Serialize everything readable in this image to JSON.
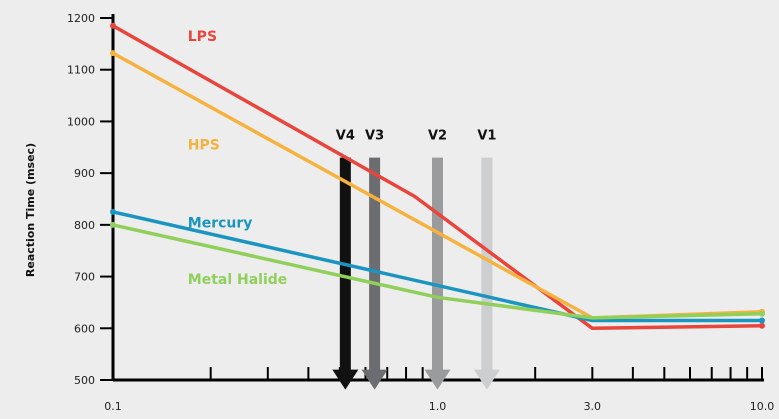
{
  "chart_data": {
    "type": "line",
    "title": "",
    "xlabel": "",
    "ylabel": "Reaction Time (msec)",
    "x_scale": "log",
    "xlim": [
      0.1,
      10.0
    ],
    "ylim": [
      500,
      1200
    ],
    "x_tick_labels": [
      {
        "value": 0.1,
        "label": "0.1"
      },
      {
        "value": 1.0,
        "label": "1.0"
      },
      {
        "value": 3.0,
        "label": "3.0"
      },
      {
        "value": 10.0,
        "label": "10.0"
      }
    ],
    "x_minor_ticks": [
      0.2,
      0.3,
      0.4,
      0.5,
      0.6,
      0.7,
      0.8,
      0.9,
      2,
      4,
      5,
      6,
      7,
      8,
      9
    ],
    "y_ticks": [
      500,
      600,
      700,
      800,
      900,
      1000,
      1100,
      1200
    ],
    "grid": false,
    "series": [
      {
        "name": "LPS",
        "color": "#e8453c",
        "points": [
          [
            0.1,
            1185
          ],
          [
            0.85,
            855
          ],
          [
            3.0,
            600
          ],
          [
            10.0,
            605
          ]
        ]
      },
      {
        "name": "HPS",
        "color": "#f6b23f",
        "points": [
          [
            0.1,
            1132
          ],
          [
            3.0,
            620
          ],
          [
            10.0,
            632
          ]
        ]
      },
      {
        "name": "Mercury",
        "color": "#1a95c0",
        "points": [
          [
            0.1,
            825
          ],
          [
            3.0,
            615
          ],
          [
            10.0,
            615
          ]
        ]
      },
      {
        "name": "Metal Halide",
        "color": "#8fcf5a",
        "points": [
          [
            0.1,
            800
          ],
          [
            1.0,
            660
          ],
          [
            3.0,
            620
          ],
          [
            10.0,
            628
          ]
        ]
      }
    ],
    "series_label_positions": [
      {
        "name": "LPS",
        "x": 0.17,
        "y": 1165
      },
      {
        "name": "HPS",
        "x": 0.17,
        "y": 955
      },
      {
        "name": "Mercury",
        "x": 0.17,
        "y": 805
      },
      {
        "name": "Metal Halide",
        "x": 0.17,
        "y": 695
      }
    ],
    "arrows": [
      {
        "label": "V4",
        "x": 0.52,
        "color": "#111111"
      },
      {
        "label": "V3",
        "x": 0.64,
        "color": "#6c6d70"
      },
      {
        "label": "V2",
        "x": 1.0,
        "color": "#9a9b9d"
      },
      {
        "label": "V1",
        "x": 1.42,
        "color": "#cdcecf"
      }
    ],
    "arrow_top_y": 930,
    "arrow_bottom_y": 520,
    "arrow_label_y": 975
  }
}
